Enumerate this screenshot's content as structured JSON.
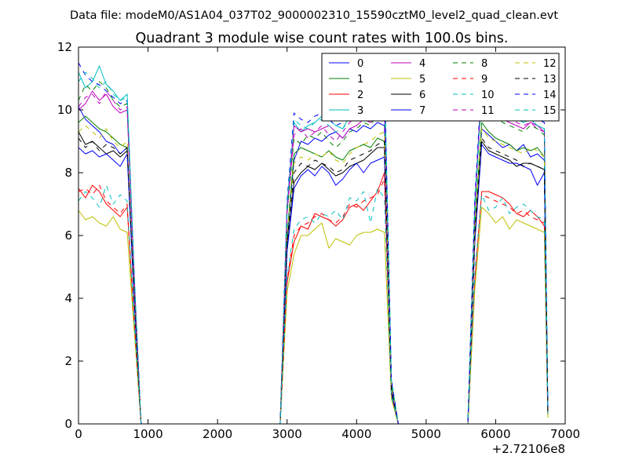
{
  "suptitle": "Data file: modeM0/AS1A04_037T02_9000002310_15590cztM0_level2_quad_clean.evt",
  "chart_data": {
    "type": "line",
    "title": "Quadrant 3 module wise count rates with 100.0s bins.",
    "xlabel": "",
    "ylabel": "",
    "x_offset_label": "+2.72106e8",
    "xlim": [
      0,
      7000
    ],
    "ylim": [
      0,
      12
    ],
    "xticks": [
      "0",
      "1000",
      "2000",
      "3000",
      "4000",
      "5000",
      "6000",
      "7000"
    ],
    "yticks": [
      "0",
      "2",
      "4",
      "6",
      "8",
      "10",
      "12"
    ],
    "grid": false,
    "legend_position": "top-right",
    "legend_columns": 4,
    "x": [
      0,
      100,
      200,
      300,
      400,
      500,
      600,
      700,
      800,
      900,
      1000,
      1100,
      1200,
      1300,
      1400,
      1500,
      1600,
      1700,
      1800,
      1900,
      2000,
      2100,
      2200,
      2300,
      2400,
      2500,
      2600,
      2700,
      2800,
      2900,
      3000,
      3100,
      3200,
      3300,
      3400,
      3500,
      3600,
      3700,
      3800,
      3900,
      4000,
      4100,
      4200,
      4300,
      4400,
      4500,
      4600,
      4700,
      4800,
      4900,
      5000,
      5100,
      5200,
      5300,
      5400,
      5500,
      5600,
      5700,
      5800,
      5900,
      6000,
      6100,
      6200,
      6300,
      6400,
      6500,
      6600,
      6700,
      6750
    ],
    "series": [
      {
        "name": "0",
        "color": "#0000ff",
        "dash": "solid",
        "values": [
          10.1,
          9.7,
          9.5,
          9.3,
          9.0,
          8.9,
          8.6,
          8.8,
          4.1,
          0,
          0,
          0,
          0,
          0,
          0,
          0,
          0,
          0,
          0,
          0,
          0,
          0,
          0,
          0,
          0,
          0,
          0,
          0,
          0,
          0,
          5.9,
          8.4,
          9.0,
          8.9,
          9.1,
          9.0,
          9.2,
          9.3,
          9.1,
          9.4,
          9.3,
          9.5,
          9.4,
          9.6,
          9.5,
          1.2,
          0,
          0,
          0,
          0,
          0,
          0,
          0,
          0,
          0,
          0,
          0,
          6.2,
          9.4,
          9.2,
          9.0,
          8.8,
          8.9,
          8.7,
          8.9,
          8.5,
          8.6,
          8.4,
          0.4
        ]
      },
      {
        "name": "1",
        "color": "#008000",
        "dash": "solid",
        "values": [
          9.6,
          9.8,
          9.6,
          9.4,
          9.3,
          9.1,
          8.9,
          8.8,
          4.0,
          0,
          0,
          0,
          0,
          0,
          0,
          0,
          0,
          0,
          0,
          0,
          0,
          0,
          0,
          0,
          0,
          0,
          0,
          0,
          0,
          0,
          6.0,
          8.6,
          8.8,
          8.7,
          8.6,
          8.5,
          8.7,
          8.5,
          8.4,
          8.7,
          8.8,
          8.9,
          8.8,
          9.1,
          9.0,
          1.1,
          0,
          0,
          0,
          0,
          0,
          0,
          0,
          0,
          0,
          0,
          0,
          6.3,
          9.6,
          9.3,
          9.1,
          9.0,
          8.9,
          8.7,
          8.8,
          8.7,
          8.8,
          8.5,
          0.4
        ]
      },
      {
        "name": "2",
        "color": "#ff0000",
        "dash": "solid",
        "values": [
          7.5,
          7.2,
          7.6,
          7.4,
          7.0,
          6.8,
          6.6,
          6.9,
          3.2,
          0,
          0,
          0,
          0,
          0,
          0,
          0,
          0,
          0,
          0,
          0,
          0,
          0,
          0,
          0,
          0,
          0,
          0,
          0,
          0,
          0,
          4.5,
          5.8,
          6.3,
          6.2,
          6.7,
          6.6,
          6.5,
          6.3,
          6.5,
          6.9,
          7.0,
          6.8,
          7.1,
          7.4,
          8.0,
          0.9,
          0,
          0,
          0,
          0,
          0,
          0,
          0,
          0,
          0,
          0,
          0,
          4.6,
          7.4,
          7.4,
          7.3,
          7.2,
          7.0,
          6.7,
          6.6,
          6.8,
          6.6,
          6.3,
          0.3
        ]
      },
      {
        "name": "3",
        "color": "#00bfbf",
        "dash": "solid",
        "values": [
          11.2,
          10.7,
          10.9,
          11.4,
          10.8,
          10.6,
          10.3,
          10.5,
          4.8,
          0,
          0,
          0,
          0,
          0,
          0,
          0,
          0,
          0,
          0,
          0,
          0,
          0,
          0,
          0,
          0,
          0,
          0,
          0,
          0,
          0,
          7.0,
          9.6,
          9.3,
          9.5,
          9.6,
          9.8,
          9.7,
          9.5,
          9.4,
          9.8,
          10.0,
          10.4,
          10.7,
          10.9,
          11.3,
          1.4,
          0,
          0,
          0,
          0,
          0,
          0,
          0,
          0,
          0,
          0,
          0,
          7.1,
          10.8,
          10.4,
          10.1,
          10.0,
          9.9,
          9.8,
          9.6,
          9.7,
          9.5,
          9.4,
          0.5
        ]
      },
      {
        "name": "4",
        "color": "#bf00bf",
        "dash": "solid",
        "values": [
          10.0,
          10.2,
          10.6,
          10.3,
          10.5,
          10.1,
          9.9,
          10.0,
          4.6,
          0,
          0,
          0,
          0,
          0,
          0,
          0,
          0,
          0,
          0,
          0,
          0,
          0,
          0,
          0,
          0,
          0,
          0,
          0,
          0,
          0,
          6.8,
          9.5,
          9.3,
          9.4,
          9.3,
          9.4,
          9.5,
          9.3,
          9.1,
          9.4,
          9.5,
          9.7,
          9.6,
          9.8,
          10.0,
          1.3,
          0,
          0,
          0,
          0,
          0,
          0,
          0,
          0,
          0,
          0,
          0,
          6.9,
          11.0,
          10.2,
          9.9,
          9.7,
          9.6,
          9.5,
          9.4,
          9.6,
          9.5,
          9.3,
          0.5
        ]
      },
      {
        "name": "5",
        "color": "#bfbf00",
        "dash": "solid",
        "values": [
          6.8,
          6.5,
          6.6,
          6.4,
          6.3,
          6.6,
          6.2,
          6.1,
          3.0,
          0,
          0,
          0,
          0,
          0,
          0,
          0,
          0,
          0,
          0,
          0,
          0,
          0,
          0,
          0,
          0,
          0,
          0,
          0,
          0,
          0,
          4.2,
          5.4,
          6.0,
          6.0,
          6.2,
          6.4,
          5.6,
          5.9,
          5.8,
          5.7,
          6.0,
          6.1,
          6.1,
          6.2,
          6.1,
          0.8,
          0,
          0,
          0,
          0,
          0,
          0,
          0,
          0,
          0,
          0,
          0,
          4.3,
          6.9,
          6.7,
          6.4,
          6.6,
          6.2,
          6.5,
          6.4,
          6.3,
          6.2,
          6.1,
          0.2
        ]
      },
      {
        "name": "6",
        "color": "#000000",
        "dash": "solid",
        "values": [
          9.3,
          8.9,
          9.0,
          8.8,
          8.6,
          8.7,
          8.5,
          8.7,
          4.0,
          0,
          0,
          0,
          0,
          0,
          0,
          0,
          0,
          0,
          0,
          0,
          0,
          0,
          0,
          0,
          0,
          0,
          0,
          0,
          0,
          0,
          5.6,
          7.7,
          8.0,
          8.2,
          8.1,
          8.3,
          8.1,
          7.9,
          8.0,
          8.2,
          8.3,
          8.4,
          8.6,
          8.8,
          8.8,
          1.1,
          0,
          0,
          0,
          0,
          0,
          0,
          0,
          0,
          0,
          0,
          0,
          5.9,
          9.0,
          8.7,
          8.6,
          8.5,
          8.4,
          8.2,
          8.3,
          8.3,
          8.2,
          8.1,
          0.4
        ]
      },
      {
        "name": "7",
        "color": "#0000ff",
        "dash": "solid",
        "values": [
          8.8,
          8.6,
          8.7,
          8.5,
          8.6,
          8.4,
          8.2,
          8.6,
          3.9,
          0,
          0,
          0,
          0,
          0,
          0,
          0,
          0,
          0,
          0,
          0,
          0,
          0,
          0,
          0,
          0,
          0,
          0,
          0,
          0,
          0,
          5.5,
          7.5,
          7.9,
          8.1,
          7.9,
          8.2,
          8.0,
          7.6,
          7.8,
          8.1,
          8.3,
          8.0,
          8.3,
          8.4,
          8.5,
          1.0,
          0,
          0,
          0,
          0,
          0,
          0,
          0,
          0,
          0,
          0,
          0,
          5.8,
          8.9,
          8.6,
          8.5,
          8.4,
          8.3,
          8.3,
          8.2,
          8.1,
          7.6,
          8.0,
          0.4
        ]
      },
      {
        "name": "8",
        "color": "#008000",
        "dash": "dashed",
        "values": [
          10.3,
          10.8,
          10.6,
          10.9,
          10.7,
          10.3,
          10.1,
          10.2,
          4.7,
          0,
          0,
          0,
          0,
          0,
          0,
          0,
          0,
          0,
          0,
          0,
          0,
          0,
          0,
          0,
          0,
          0,
          0,
          0,
          0,
          0,
          6.7,
          9.1,
          8.9,
          9.2,
          9.1,
          9.3,
          9.0,
          8.8,
          9.0,
          9.3,
          9.4,
          9.6,
          9.5,
          9.9,
          10.1,
          1.3,
          0,
          0,
          0,
          0,
          0,
          0,
          0,
          0,
          0,
          0,
          0,
          6.8,
          10.5,
          10.0,
          9.8,
          9.6,
          9.5,
          9.4,
          9.3,
          9.5,
          9.4,
          9.2,
          0.5
        ]
      },
      {
        "name": "9",
        "color": "#ff0000",
        "dash": "dashed",
        "values": [
          7.4,
          7.5,
          7.3,
          7.6,
          7.1,
          6.9,
          6.7,
          7.0,
          3.3,
          0,
          0,
          0,
          0,
          0,
          0,
          0,
          0,
          0,
          0,
          0,
          0,
          0,
          0,
          0,
          0,
          0,
          0,
          0,
          0,
          0,
          4.6,
          6.0,
          6.3,
          6.4,
          6.6,
          6.7,
          6.5,
          6.4,
          6.6,
          7.0,
          6.9,
          7.1,
          7.2,
          7.3,
          7.8,
          0.9,
          0,
          0,
          0,
          0,
          0,
          0,
          0,
          0,
          0,
          0,
          0,
          4.7,
          7.3,
          7.2,
          7.1,
          7.0,
          6.9,
          6.7,
          6.8,
          6.6,
          6.5,
          6.4,
          0.3
        ]
      },
      {
        "name": "10",
        "color": "#00bfbf",
        "dash": "dashed",
        "values": [
          7.1,
          7.4,
          7.2,
          6.9,
          7.6,
          7.0,
          7.3,
          7.1,
          3.3,
          0,
          0,
          0,
          0,
          0,
          0,
          0,
          0,
          0,
          0,
          0,
          0,
          0,
          0,
          0,
          0,
          0,
          0,
          0,
          0,
          0,
          4.7,
          6.2,
          6.5,
          6.6,
          6.4,
          6.7,
          6.6,
          6.8,
          6.5,
          7.2,
          7.1,
          7.4,
          6.4,
          7.5,
          7.2,
          0.9,
          0,
          0,
          0,
          0,
          0,
          0,
          0,
          0,
          0,
          0,
          0,
          4.8,
          7.3,
          6.8,
          6.9,
          7.2,
          6.7,
          6.9,
          7.0,
          6.8,
          6.6,
          6.5,
          0.3
        ]
      },
      {
        "name": "11",
        "color": "#bf00bf",
        "dash": "dashed",
        "values": [
          10.1,
          10.4,
          10.5,
          10.2,
          10.6,
          10.3,
          10.0,
          10.1,
          4.6,
          0,
          0,
          0,
          0,
          0,
          0,
          0,
          0,
          0,
          0,
          0,
          0,
          0,
          0,
          0,
          0,
          0,
          0,
          0,
          0,
          0,
          6.7,
          9.2,
          9.4,
          9.1,
          9.3,
          9.5,
          9.2,
          9.0,
          9.3,
          9.6,
          9.8,
          10.0,
          9.9,
          10.2,
          10.5,
          1.3,
          0,
          0,
          0,
          0,
          0,
          0,
          0,
          0,
          0,
          0,
          0,
          6.9,
          10.7,
          10.2,
          10.0,
          9.8,
          9.7,
          9.6,
          9.5,
          9.6,
          9.4,
          9.3,
          0.5
        ]
      },
      {
        "name": "12",
        "color": "#bfbf00",
        "dash": "dashed",
        "values": [
          9.3,
          9.5,
          9.3,
          9.1,
          9.4,
          9.0,
          8.8,
          9.0,
          4.1,
          0,
          0,
          0,
          0,
          0,
          0,
          0,
          0,
          0,
          0,
          0,
          0,
          0,
          0,
          0,
          0,
          0,
          0,
          0,
          0,
          0,
          6.0,
          8.3,
          8.5,
          8.4,
          8.6,
          8.5,
          8.7,
          8.4,
          8.3,
          8.6,
          8.8,
          8.9,
          9.0,
          9.2,
          9.3,
          1.2,
          0,
          0,
          0,
          0,
          0,
          0,
          0,
          0,
          0,
          0,
          0,
          6.2,
          9.4,
          9.1,
          9.0,
          8.9,
          8.8,
          8.7,
          8.6,
          8.8,
          8.7,
          8.5,
          0.4
        ]
      },
      {
        "name": "13",
        "color": "#000000",
        "dash": "dashed",
        "values": [
          9.1,
          8.8,
          9.0,
          8.7,
          8.9,
          8.8,
          8.6,
          8.8,
          4.0,
          0,
          0,
          0,
          0,
          0,
          0,
          0,
          0,
          0,
          0,
          0,
          0,
          0,
          0,
          0,
          0,
          0,
          0,
          0,
          0,
          0,
          5.8,
          8.0,
          8.3,
          8.2,
          8.4,
          8.3,
          8.2,
          8.0,
          8.1,
          8.4,
          8.5,
          8.6,
          8.7,
          8.9,
          9.0,
          1.1,
          0,
          0,
          0,
          0,
          0,
          0,
          0,
          0,
          0,
          0,
          0,
          6.0,
          9.1,
          8.8,
          8.7,
          8.6,
          8.5,
          8.4,
          8.2,
          8.3,
          8.2,
          8.1,
          0.4
        ]
      },
      {
        "name": "14",
        "color": "#0000ff",
        "dash": "dashed",
        "values": [
          11.5,
          11.1,
          10.9,
          10.8,
          10.6,
          10.4,
          10.2,
          10.3,
          4.8,
          0,
          0,
          0,
          0,
          0,
          0,
          0,
          0,
          0,
          0,
          0,
          0,
          0,
          0,
          0,
          0,
          0,
          0,
          0,
          0,
          0,
          7.1,
          9.9,
          9.7,
          9.6,
          9.8,
          9.9,
          9.7,
          9.5,
          9.6,
          9.9,
          10.1,
          10.3,
          10.5,
          10.6,
          10.9,
          1.4,
          0,
          0,
          0,
          0,
          0,
          0,
          0,
          0,
          0,
          0,
          0,
          7.2,
          11.0,
          10.5,
          10.3,
          10.1,
          10.0,
          9.9,
          9.8,
          9.9,
          9.7,
          9.6,
          0.5
        ]
      },
      {
        "name": "15",
        "color": "#00bfbf",
        "dash": "dashed",
        "values": [
          10.9,
          11.2,
          11.0,
          10.7,
          10.9,
          10.5,
          10.3,
          10.4,
          4.7,
          0,
          0,
          0,
          0,
          0,
          0,
          0,
          0,
          0,
          0,
          0,
          0,
          0,
          0,
          0,
          0,
          0,
          0,
          0,
          0,
          0,
          6.9,
          9.7,
          9.5,
          9.4,
          9.6,
          9.7,
          9.5,
          9.3,
          9.4,
          9.7,
          9.9,
          10.1,
          10.3,
          10.5,
          10.7,
          1.4,
          0,
          0,
          0,
          0,
          0,
          0,
          0,
          0,
          0,
          0,
          0,
          7.0,
          10.6,
          10.2,
          10.0,
          9.9,
          9.8,
          9.7,
          9.6,
          9.7,
          9.5,
          9.4,
          0.5
        ]
      }
    ]
  }
}
